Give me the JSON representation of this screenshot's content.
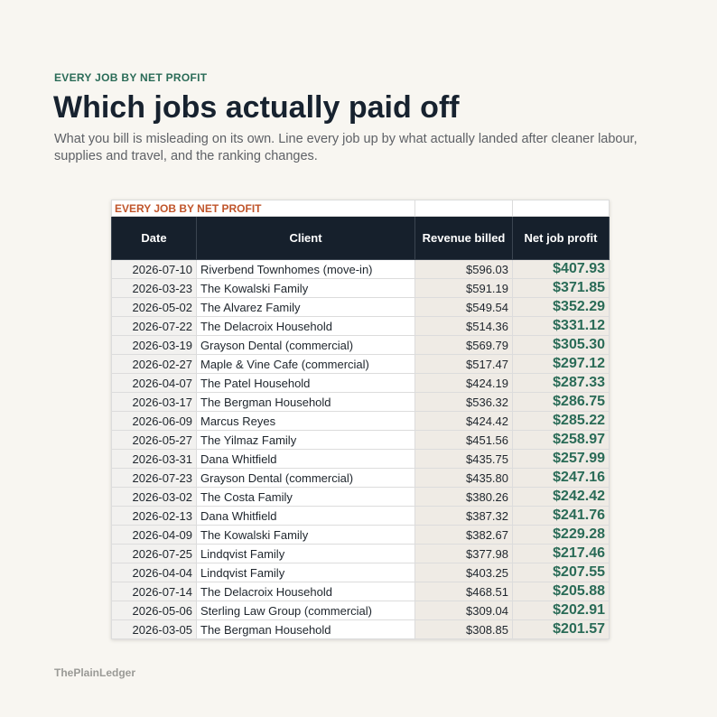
{
  "header": {
    "eyebrow": "EVERY JOB BY NET PROFIT",
    "title": "Which jobs actually paid off",
    "subtitle": "What you bill is misleading on its own. Line every job up by what actually landed after cleaner labour, supplies and travel, and the ranking changes."
  },
  "table": {
    "sheet_title": "EVERY JOB BY NET PROFIT",
    "columns": [
      "Date",
      "Client",
      "Revenue billed",
      "Net job profit"
    ],
    "rows": [
      [
        "2026-07-10",
        "Riverbend Townhomes (move-in)",
        "$596.03",
        "$407.93"
      ],
      [
        "2026-03-23",
        "The Kowalski Family",
        "$591.19",
        "$371.85"
      ],
      [
        "2026-05-02",
        "The Alvarez Family",
        "$549.54",
        "$352.29"
      ],
      [
        "2026-07-22",
        "The Delacroix Household",
        "$514.36",
        "$331.12"
      ],
      [
        "2026-03-19",
        "Grayson Dental (commercial)",
        "$569.79",
        "$305.30"
      ],
      [
        "2026-02-27",
        "Maple & Vine Cafe (commercial)",
        "$517.47",
        "$297.12"
      ],
      [
        "2026-04-07",
        "The Patel Household",
        "$424.19",
        "$287.33"
      ],
      [
        "2026-03-17",
        "The Bergman Household",
        "$536.32",
        "$286.75"
      ],
      [
        "2026-06-09",
        "Marcus Reyes",
        "$424.42",
        "$285.22"
      ],
      [
        "2026-05-27",
        "The Yilmaz Family",
        "$451.56",
        "$258.97"
      ],
      [
        "2026-03-31",
        "Dana Whitfield",
        "$435.75",
        "$257.99"
      ],
      [
        "2026-07-23",
        "Grayson Dental (commercial)",
        "$435.80",
        "$247.16"
      ],
      [
        "2026-03-02",
        "The Costa Family",
        "$380.26",
        "$242.42"
      ],
      [
        "2026-02-13",
        "Dana Whitfield",
        "$387.32",
        "$241.76"
      ],
      [
        "2026-04-09",
        "The Kowalski Family",
        "$382.67",
        "$229.28"
      ],
      [
        "2026-07-25",
        "Lindqvist Family",
        "$377.98",
        "$217.46"
      ],
      [
        "2026-04-04",
        "Lindqvist Family",
        "$403.25",
        "$207.55"
      ],
      [
        "2026-07-14",
        "The Delacroix Household",
        "$468.51",
        "$205.88"
      ],
      [
        "2026-05-06",
        "Sterling Law Group (commercial)",
        "$309.04",
        "$202.91"
      ],
      [
        "2026-03-05",
        "The Bergman Household",
        "$308.85",
        "$201.57"
      ]
    ]
  },
  "footer": {
    "brand": "ThePlainLedger"
  }
}
